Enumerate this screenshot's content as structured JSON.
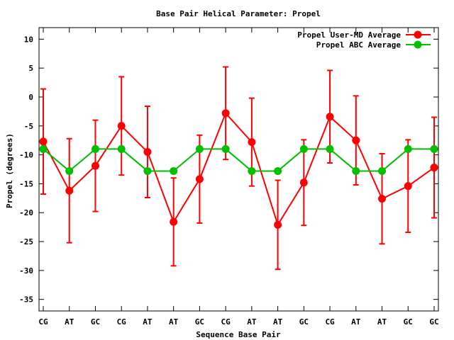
{
  "chart_data": {
    "type": "line",
    "title": "Base Pair Helical Parameter: Propel",
    "xlabel": "Sequence Base Pair",
    "ylabel": "Propel (degrees)",
    "categories": [
      "CG",
      "AT",
      "GC",
      "CG",
      "AT",
      "AT",
      "GC",
      "CG",
      "AT",
      "AT",
      "GC",
      "CG",
      "AT",
      "AT",
      "GC",
      "GC"
    ],
    "ylim": [
      -37,
      12
    ],
    "yticks": [
      10,
      5,
      0,
      -5,
      -10,
      -15,
      -20,
      -25,
      -30,
      -35
    ],
    "grid": false,
    "legend_position": "top-right",
    "series": [
      {
        "name": "Propel User-MD Average",
        "color": "#ff0000",
        "values": [
          -7.7,
          -16.2,
          -11.9,
          -5.0,
          -9.5,
          -21.6,
          -14.2,
          -2.8,
          -7.8,
          -22.1,
          -14.8,
          -3.4,
          -7.5,
          -17.6,
          -15.4,
          -12.2
        ],
        "error": [
          9.1,
          9.0,
          7.9,
          8.5,
          7.9,
          7.6,
          7.6,
          8.0,
          7.6,
          7.7,
          7.4,
          8.0,
          7.7,
          7.8,
          8.0,
          8.7
        ]
      },
      {
        "name": "Propel ABC Average",
        "color": "#00c000",
        "values": [
          -9.0,
          -12.8,
          -9.0,
          -9.0,
          -12.8,
          -12.8,
          -9.0,
          -9.0,
          -12.8,
          -12.8,
          -9.0,
          -9.0,
          -12.8,
          -12.8,
          -9.0,
          -9.0
        ]
      }
    ]
  }
}
